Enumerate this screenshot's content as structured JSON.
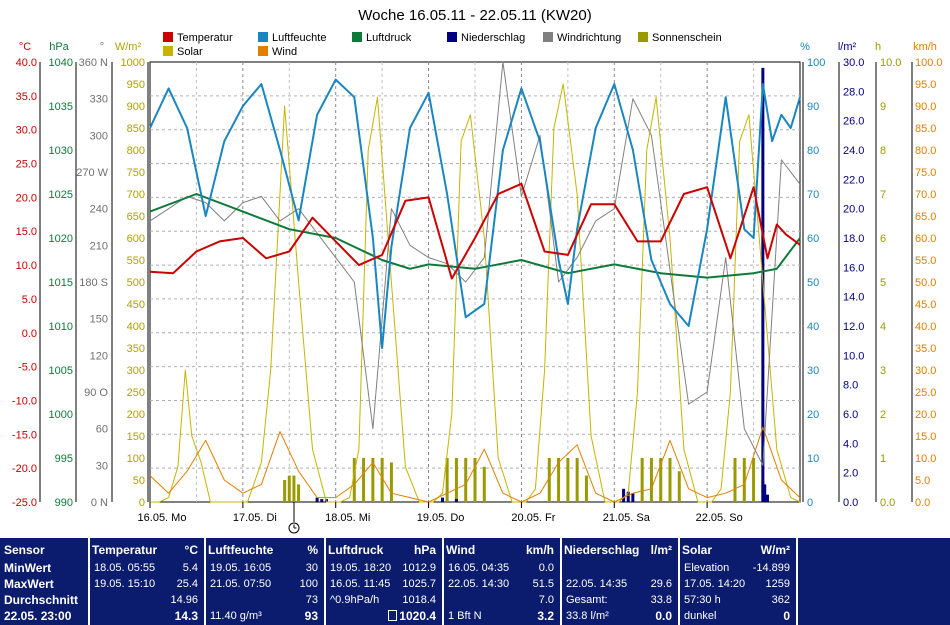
{
  "chart_data": {
    "type": "line",
    "title": "Woche 16.05.11 - 22.05.11 (KW20)",
    "x_labels": [
      "16.05. Mo",
      "17.05. Di",
      "18.05. Mi",
      "19.05. Do",
      "20.05. Fr",
      "21.05. Sa",
      "22.05. So"
    ],
    "x_range_days": [
      0,
      7
    ],
    "legend": [
      {
        "label": "Temperatur",
        "color": "#cc0000"
      },
      {
        "label": "Luftfeuchte",
        "color": "#1a86c0"
      },
      {
        "label": "Luftdruck",
        "color": "#0e7a3a"
      },
      {
        "label": "Niederschlag",
        "color": "#000080"
      },
      {
        "label": "Windrichtung",
        "color": "#808080"
      },
      {
        "label": "Sonnenschein",
        "color": "#9a9a00"
      },
      {
        "label": "Solar",
        "color": "#c8b400"
      },
      {
        "label": "Wind",
        "color": "#e08000"
      }
    ],
    "axes": {
      "temperature": {
        "unit": "°C",
        "color": "#cc0000",
        "min": -25,
        "max": 40,
        "ticks": [
          "40.0",
          "35.0",
          "30.0",
          "25.0",
          "20.0",
          "15.0",
          "10.0",
          "5.0",
          "0.0",
          "-5.0",
          "-10.0",
          "-15.0",
          "-20.0",
          "-25.0"
        ]
      },
      "pressure": {
        "unit": "hPa",
        "color": "#0e7a3a",
        "min": 990,
        "max": 1040,
        "ticks": [
          "1040",
          "1035",
          "1030",
          "1025",
          "1020",
          "1015",
          "1010",
          "1005",
          "1000",
          "995",
          "990"
        ]
      },
      "direction": {
        "unit": "°",
        "color": "#707070",
        "min": 0,
        "max": 360,
        "ticks": [
          "360 N",
          "330",
          "300",
          "270 W",
          "240",
          "210",
          "180 S",
          "150",
          "120",
          "90 O",
          "60",
          "30",
          "0 N"
        ]
      },
      "solar": {
        "unit": "W/m²",
        "color": "#b0a000",
        "min": 0,
        "max": 1000,
        "ticks": [
          "1000",
          "950",
          "900",
          "850",
          "800",
          "750",
          "700",
          "650",
          "600",
          "550",
          "500",
          "450",
          "400",
          "350",
          "300",
          "250",
          "200",
          "150",
          "100",
          "50",
          "0"
        ]
      },
      "humidity": {
        "unit": "%",
        "color": "#1a86c0",
        "min": 0,
        "max": 100,
        "ticks": [
          "100",
          "90",
          "80",
          "70",
          "60",
          "50",
          "40",
          "30",
          "20",
          "10",
          "0"
        ]
      },
      "rain": {
        "unit": "l/m²",
        "color": "#000080",
        "min": 0,
        "max": 30,
        "ticks": [
          "30.0",
          "28.0",
          "26.0",
          "24.0",
          "22.0",
          "20.0",
          "18.0",
          "16.0",
          "14.0",
          "12.0",
          "10.0",
          "8.0",
          "6.0",
          "4.0",
          "2.0",
          "0.0"
        ]
      },
      "sunshine": {
        "unit": "h",
        "color": "#9a9a00",
        "min": 0,
        "max": 10,
        "ticks": [
          "10.0",
          "9",
          "8",
          "7",
          "6",
          "5",
          "4",
          "3",
          "2",
          "1",
          "0.0"
        ]
      },
      "wind": {
        "unit": "km/h",
        "color": "#e08000",
        "min": 0,
        "max": 100,
        "ticks": [
          "100.0",
          "95.0",
          "90.0",
          "85.0",
          "80.0",
          "75.0",
          "70.0",
          "65.0",
          "60.0",
          "55.0",
          "50.0",
          "45.0",
          "40.0",
          "35.0",
          "30.0",
          "25.0",
          "20.0",
          "15.0",
          "10.0",
          "5.0",
          "0.0"
        ]
      }
    },
    "series": [
      {
        "name": "Temperatur",
        "axis": "temperature",
        "x": [
          0,
          0.25,
          0.5,
          0.75,
          1,
          1.25,
          1.5,
          1.75,
          2,
          2.25,
          2.5,
          2.75,
          3,
          3.25,
          3.5,
          3.75,
          4,
          4.25,
          4.5,
          4.75,
          5,
          5.25,
          5.5,
          5.75,
          6,
          6.25,
          6.5,
          6.65,
          6.75,
          6.85,
          7
        ],
        "y": [
          9,
          8.8,
          12,
          13.5,
          14,
          11,
          12,
          17,
          13.5,
          10,
          11.5,
          19.5,
          20,
          8,
          14,
          20.5,
          22,
          12,
          11.5,
          19,
          19,
          13.5,
          13.5,
          20.5,
          21.5,
          11,
          21.5,
          11,
          16,
          14.5,
          13
        ]
      },
      {
        "name": "Luftfeuchte",
        "axis": "humidity",
        "x": [
          0,
          0.2,
          0.4,
          0.6,
          0.8,
          1,
          1.2,
          1.4,
          1.6,
          1.8,
          2,
          2.2,
          2.4,
          2.5,
          2.6,
          2.8,
          3,
          3.2,
          3.4,
          3.6,
          3.8,
          4,
          4.2,
          4.4,
          4.5,
          4.6,
          4.8,
          5,
          5.2,
          5.4,
          5.6,
          5.8,
          6,
          6.2,
          6.4,
          6.5,
          6.6,
          6.7,
          6.8,
          6.9,
          7
        ],
        "y": [
          85,
          94,
          85,
          65,
          82,
          90,
          95,
          80,
          64,
          88,
          96,
          92,
          60,
          35,
          58,
          85,
          93,
          70,
          42,
          45,
          80,
          94,
          82,
          55,
          45,
          62,
          85,
          95,
          80,
          55,
          45,
          40,
          62,
          92,
          62,
          60,
          95,
          82,
          88,
          85,
          92
        ]
      },
      {
        "name": "Luftdruck",
        "axis": "pressure",
        "x": [
          0,
          0.5,
          1,
          1.5,
          2,
          2.5,
          2.8,
          3,
          3.5,
          4,
          4.5,
          5,
          5.5,
          6,
          6.5,
          6.75,
          7
        ],
        "y": [
          1023,
          1025,
          1023,
          1021,
          1020,
          1017.5,
          1016.5,
          1017,
          1016.5,
          1017.5,
          1016,
          1017,
          1016,
          1015.5,
          1016,
          1016.5,
          1020
        ]
      },
      {
        "name": "Windrichtung",
        "axis": "direction",
        "x": [
          0,
          0.2,
          0.4,
          0.6,
          0.8,
          1,
          1.2,
          1.4,
          1.6,
          1.8,
          2,
          2.2,
          2.4,
          2.6,
          2.8,
          3,
          3.2,
          3.4,
          3.6,
          3.8,
          4,
          4.2,
          4.4,
          4.6,
          4.8,
          5,
          5.2,
          5.4,
          5.6,
          5.8,
          6,
          6.2,
          6.4,
          6.6,
          6.8,
          7
        ],
        "y": [
          230,
          240,
          250,
          245,
          230,
          245,
          250,
          230,
          240,
          220,
          200,
          180,
          60,
          240,
          210,
          200,
          195,
          180,
          200,
          360,
          250,
          300,
          180,
          200,
          230,
          240,
          330,
          300,
          190,
          80,
          90,
          200,
          60,
          30,
          280,
          260
        ]
      },
      {
        "name": "Wind",
        "axis": "wind",
        "x": [
          0,
          0.2,
          0.4,
          0.6,
          0.8,
          1,
          1.2,
          1.4,
          1.6,
          1.8,
          2,
          2.2,
          2.4,
          2.6,
          2.8,
          3,
          3.2,
          3.4,
          3.6,
          3.8,
          4,
          4.2,
          4.4,
          4.6,
          4.8,
          5,
          5.2,
          5.4,
          5.6,
          5.8,
          6,
          6.2,
          6.4,
          6.6,
          6.8,
          7
        ],
        "y": [
          6,
          2,
          7,
          14,
          5,
          2,
          4,
          16,
          7,
          1,
          1,
          4,
          9,
          2,
          1,
          0,
          2,
          4,
          12,
          2,
          0,
          2,
          9,
          13,
          2,
          0,
          2,
          3,
          14,
          3,
          1,
          2,
          4,
          17,
          5,
          1
        ]
      },
      {
        "name": "Solar",
        "axis": "solar",
        "x": [
          0,
          0.1,
          0.2,
          0.3,
          0.38,
          0.45,
          0.55,
          0.65,
          0.9,
          1.05,
          1.2,
          1.3,
          1.45,
          1.6,
          1.75,
          1.9,
          2.05,
          2.15,
          2.25,
          2.35,
          2.45,
          2.6,
          2.75,
          2.9,
          3.05,
          3.15,
          3.25,
          3.35,
          3.45,
          3.6,
          3.75,
          3.9,
          4.05,
          4.15,
          4.25,
          4.35,
          4.45,
          4.6,
          4.75,
          4.9,
          5.05,
          5.15,
          5.25,
          5.35,
          5.45,
          5.6,
          5.75,
          5.9,
          6.05,
          6.15,
          6.25,
          6.35,
          6.45,
          6.6,
          6.75,
          6.9,
          7
        ],
        "y": [
          0,
          0,
          10,
          80,
          300,
          150,
          90,
          0,
          0,
          0,
          90,
          300,
          900,
          500,
          120,
          0,
          0,
          10,
          120,
          800,
          920,
          500,
          80,
          0,
          0,
          20,
          200,
          820,
          880,
          600,
          100,
          0,
          0,
          30,
          300,
          850,
          950,
          700,
          150,
          0,
          0,
          20,
          250,
          800,
          920,
          600,
          120,
          0,
          0,
          30,
          250,
          820,
          880,
          500,
          120,
          10,
          0
        ]
      },
      {
        "name": "Niederschlag",
        "axis": "rain",
        "x": [
          1.8,
          1.85,
          1.9,
          3.15,
          3.3,
          5.1,
          5.15,
          5.2,
          6.6,
          6.62,
          6.65
        ],
        "y": [
          0.3,
          0.2,
          0.2,
          0.3,
          0.2,
          0.9,
          0.7,
          0.6,
          29.6,
          1.2,
          0.5
        ]
      },
      {
        "name": "Sonnenschein",
        "axis": "sunshine",
        "x": [
          1.45,
          1.5,
          1.55,
          1.6,
          2.2,
          2.3,
          2.4,
          2.5,
          2.6,
          3.2,
          3.3,
          3.4,
          3.5,
          3.6,
          4.3,
          4.4,
          4.5,
          4.6,
          4.7,
          5.3,
          5.4,
          5.5,
          5.6,
          5.7,
          6.3,
          6.4,
          6.5,
          6.6
        ],
        "y": [
          0.5,
          0.6,
          0.6,
          0.4,
          1.0,
          1.0,
          1.0,
          1.0,
          0.9,
          1.0,
          1.0,
          1.0,
          1.0,
          0.8,
          1.0,
          1.0,
          1.0,
          1.0,
          0.6,
          1.0,
          1.0,
          1.0,
          1.0,
          0.7,
          1.0,
          1.0,
          1.0,
          0.5
        ]
      }
    ]
  },
  "stats": {
    "labels": {
      "sensor": "Sensor",
      "min": "MinWert",
      "max": "MaxWert",
      "avg": "Durchschnitt",
      "date": "22.05. 23:00"
    },
    "temperature": {
      "title": "Temperatur",
      "unit": "°C",
      "min_ts": "18.05. 05:55",
      "min_val": "5.4",
      "max_ts": "19.05. 15:10",
      "max_val": "25.4",
      "avg": "14.96",
      "current": "14.3"
    },
    "humidity": {
      "title": "Luftfeuchte",
      "unit": "%",
      "min_ts": "19.05. 16:05",
      "min_val": "30",
      "max_ts": "21.05. 07:50",
      "max_val": "100",
      "avg": "73",
      "abs_hum": "11.40 g/m³",
      "current": "93"
    },
    "pressure": {
      "title": "Luftdruck",
      "unit": "hPa",
      "min_ts": "19.05. 18:20",
      "min_val": "1012.9",
      "max_ts": "16.05. 11:45",
      "max_val": "1025.7",
      "trend": "^0.9hPa/h",
      "avg": "1018.4",
      "current": "1020.4"
    },
    "wind": {
      "title": "Wind",
      "unit": "km/h",
      "min_ts": "16.05. 04:35",
      "min_val": "0.0",
      "max_ts": "22.05. 14:30",
      "max_val": "51.5",
      "avg": "7.0",
      "beaufort": "1 Bft N",
      "current": "3.2"
    },
    "rain": {
      "title": "Niederschlag",
      "unit": "l/m²",
      "max_ts": "22.05. 14:35",
      "max_val": "29.6",
      "total_label": "Gesamt:",
      "total_val": "33.8",
      "sum": "33.8 l/m²",
      "current": "0.0"
    },
    "solar": {
      "title": "Solar",
      "unit": "W/m²",
      "elev_label": "Elevation",
      "elev_val": "-14.899",
      "max_ts": "17.05. 14:20",
      "max_val": "1259",
      "sun_hours": "57:30 h",
      "sun_val": "362",
      "dark_label": "dunkel",
      "current": "0"
    }
  }
}
